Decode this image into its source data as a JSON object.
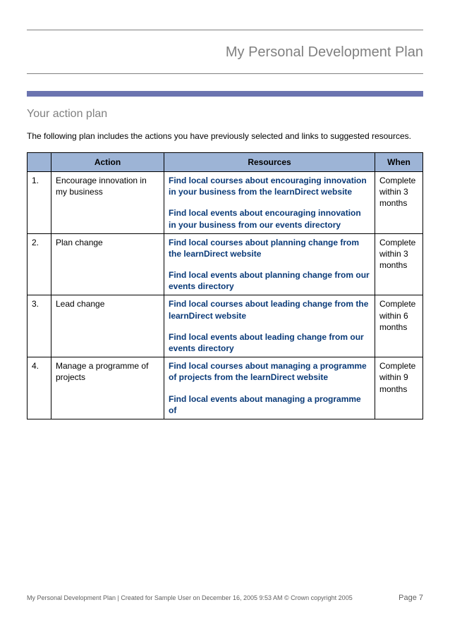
{
  "header": {
    "title": "My Personal Development Plan"
  },
  "section": {
    "title": "Your action plan",
    "intro": "The following plan includes the actions you have previously selected and links to suggested resources."
  },
  "table": {
    "columns": [
      "",
      "Action",
      "Resources",
      "When"
    ],
    "rows": [
      {
        "num": "1.",
        "action": "Encourage innovation in my business",
        "resources": [
          "Find local courses about encouraging innovation in your business from the learnDirect website",
          "Find local events about encouraging innovation in your business from our events directory"
        ],
        "when": "Complete within 3 months"
      },
      {
        "num": "2.",
        "action": "Plan change",
        "resources": [
          "Find local courses about planning change from the learnDirect website",
          "Find local events about planning change from our events directory"
        ],
        "when": "Complete within 3 months"
      },
      {
        "num": "3.",
        "action": "Lead change",
        "resources": [
          "Find local courses about leading change from the learnDirect website",
          "Find local events about leading change from our events directory"
        ],
        "when": "Complete within 6 months"
      },
      {
        "num": "4.",
        "action": "Manage a programme of projects",
        "resources": [
          "Find local courses about managing a programme of projects from the learnDirect website",
          "Find local events about managing a programme of"
        ],
        "when": "Complete within 9 months"
      }
    ]
  },
  "footer": {
    "left": "My Personal Development Plan | Created for Sample User on December 16, 2005 9:53 AM © Crown copyright 2005",
    "right": "Page 7"
  },
  "colors": {
    "header_bg": "#9db4d6",
    "blue_bar": "#6b74b0",
    "link_color": "#0a3a78",
    "rule_color": "#808080",
    "text_gray": "#808080"
  }
}
